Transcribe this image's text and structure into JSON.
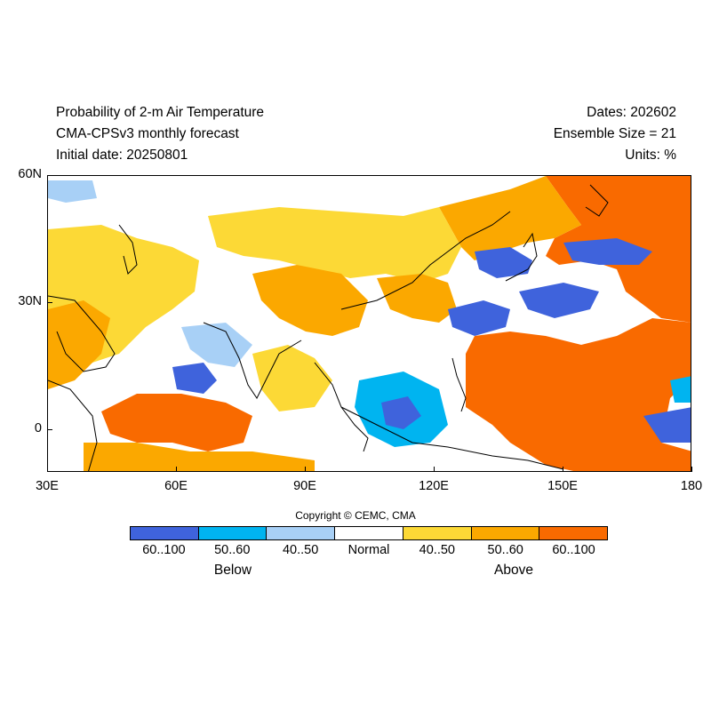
{
  "header": {
    "title": "Probability of 2-m Air Temperature",
    "model": "CMA-CPSv3 monthly forecast",
    "initial_date": "Initial date: 20250801",
    "dates": "Dates: 202602",
    "ensemble_size": "Ensemble Size = 21",
    "units": "Units: %"
  },
  "map": {
    "lon_range": [
      30,
      180
    ],
    "lat_range": [
      -10,
      60
    ],
    "lat_labels": [
      "60N",
      "30N",
      "0"
    ],
    "lon_labels": [
      "30E",
      "60E",
      "90E",
      "120E",
      "150E",
      "180"
    ]
  },
  "copyright": "Copyright © CEMC, CMA",
  "legend": {
    "categories": [
      {
        "label": "60..100",
        "color": "#3f63dc",
        "group": "Below"
      },
      {
        "label": "50..60",
        "color": "#00b4f0",
        "group": "Below"
      },
      {
        "label": "40..50",
        "color": "#a8d0f6",
        "group": "Below"
      },
      {
        "label": "Normal",
        "color": "#ffffff",
        "group": ""
      },
      {
        "label": "40..50",
        "color": "#fcd936",
        "group": "Above"
      },
      {
        "label": "50..60",
        "color": "#fba800",
        "group": "Above"
      },
      {
        "label": "60..100",
        "color": "#f96a00",
        "group": "Above"
      }
    ],
    "below_label": "Below",
    "above_label": "Above"
  }
}
